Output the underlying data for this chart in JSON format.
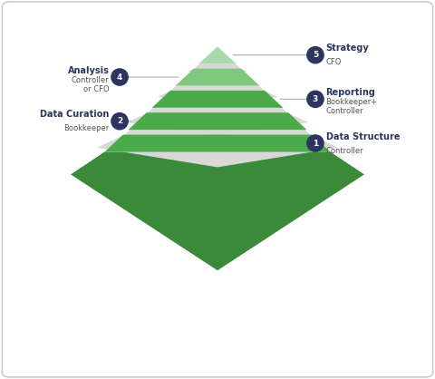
{
  "background_color": "#ffffff",
  "layers": [
    {
      "level": 1,
      "label": "Data Structure",
      "sublabel": "Controller",
      "number": "1",
      "side": "right",
      "face_color": "#4aaa4a",
      "bottom_color": "#3a8a3a"
    },
    {
      "level": 2,
      "label": "Data Curation",
      "sublabel": "Bookkeeper",
      "number": "2",
      "side": "left",
      "face_color": "#4aaa4a",
      "bottom_color": "#3a8a3a"
    },
    {
      "level": 3,
      "label": "Reporting",
      "sublabel": "Bookkeeper+\nController",
      "number": "3",
      "side": "right",
      "face_color": "#4aaa4a",
      "bottom_color": "#3a8a3a"
    },
    {
      "level": 4,
      "label": "Analysis",
      "sublabel": "Controller\nor CFO",
      "number": "4",
      "side": "left",
      "face_color": "#80c880",
      "bottom_color": "#5aaa5a"
    },
    {
      "level": 5,
      "label": "Strategy",
      "sublabel": "CFO",
      "number": "5",
      "side": "right",
      "face_color": "#aadaaa",
      "bottom_color": "#80c080"
    }
  ],
  "separator_color": "#d8d8d8",
  "label_color": "#2c3560",
  "sublabel_color": "#555555",
  "number_bg_color": "#2c3560",
  "number_text_color": "#ffffff",
  "line_color": "#aaaaaa"
}
